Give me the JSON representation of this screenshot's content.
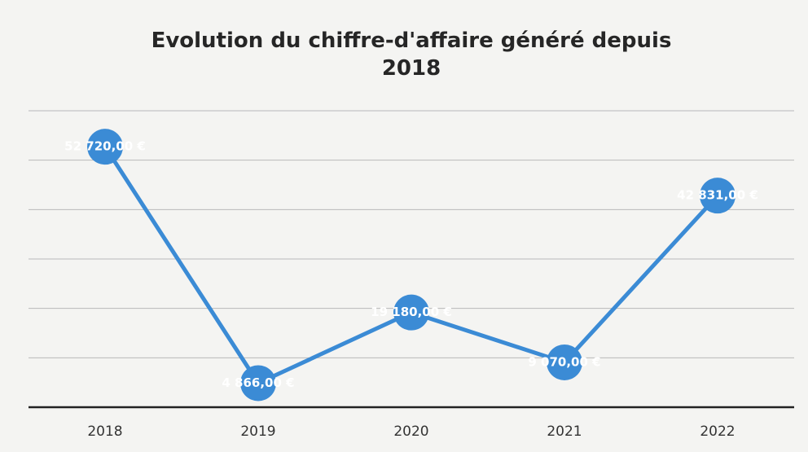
{
  "chart_data": {
    "type": "line",
    "title": "Evolution du chiffre-d'affaire généré depuis 2018",
    "categories": [
      "2018",
      "2019",
      "2020",
      "2021",
      "2022"
    ],
    "values": [
      52720,
      4866,
      19180,
      9070,
      42831
    ],
    "value_labels": [
      "52 720,00 €",
      "4 866,00 €",
      "19 180,00 €",
      "9 070,00 €",
      "42 831,00 €"
    ],
    "color": "#3b8bd5",
    "ylim": [
      0,
      60000
    ],
    "yticks": [
      0,
      10000,
      20000,
      30000,
      40000,
      50000,
      60000
    ],
    "grid": true
  }
}
